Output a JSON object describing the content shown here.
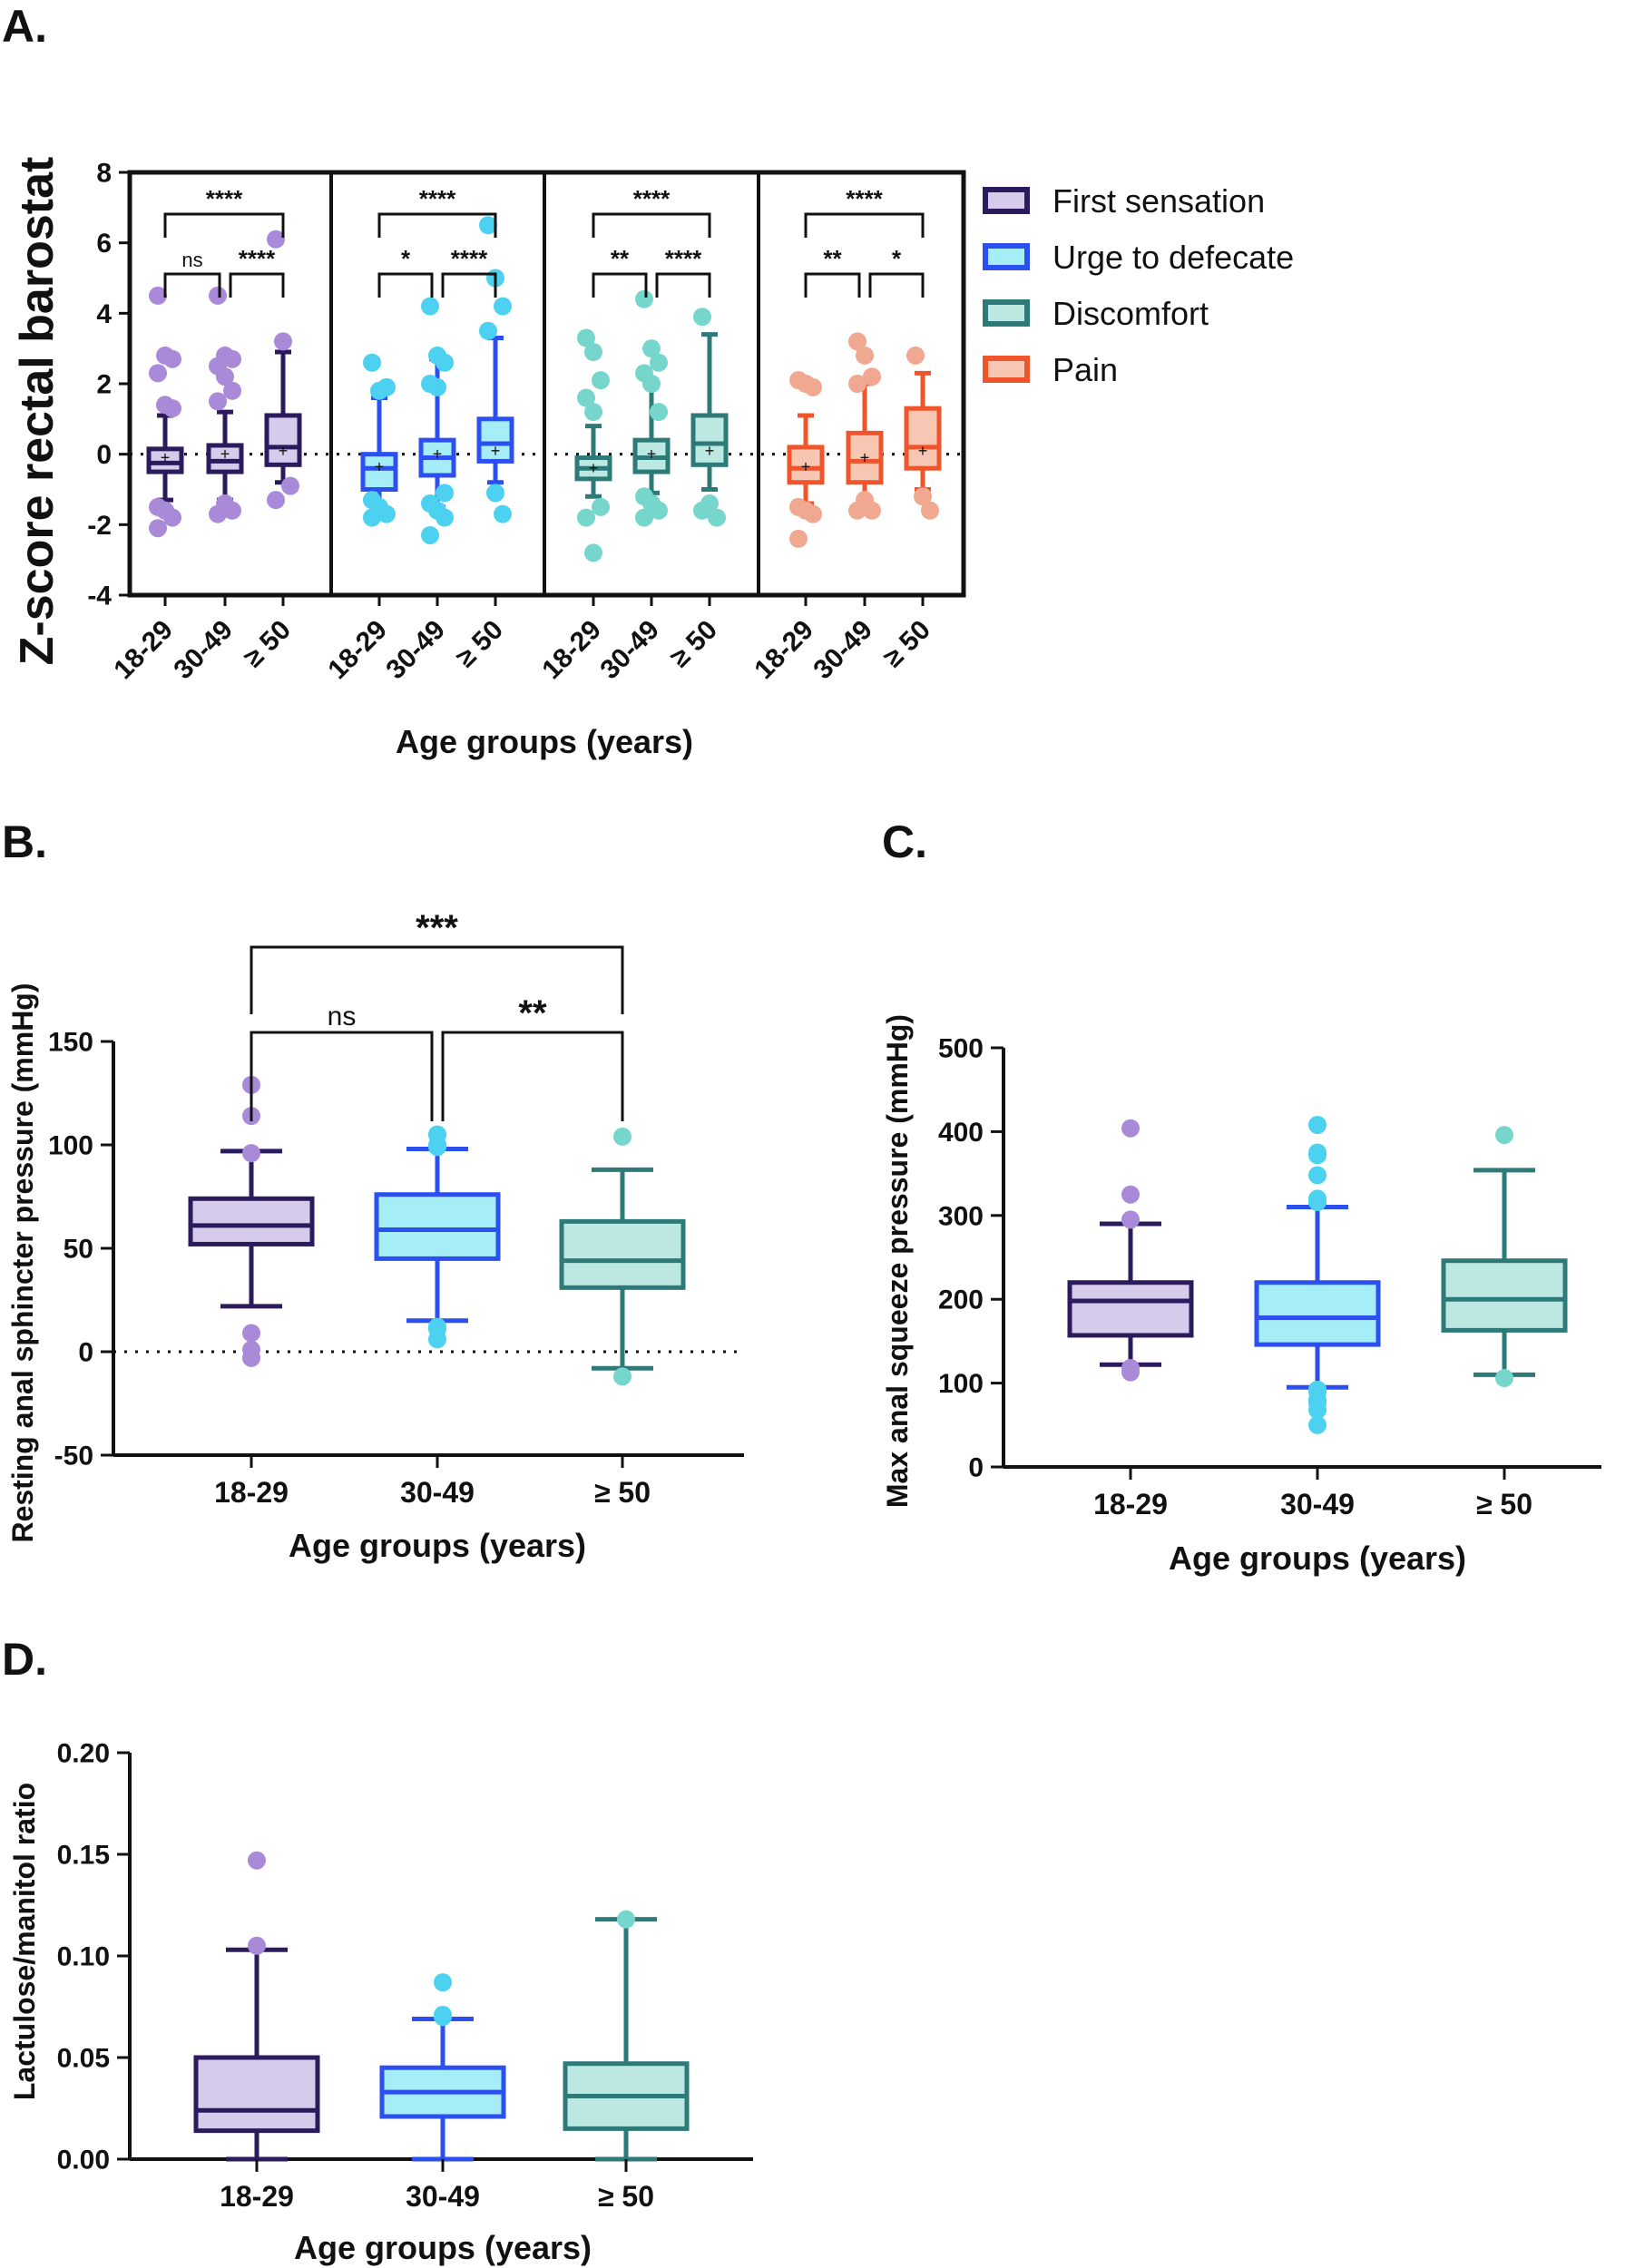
{
  "chart_data": [
    {
      "panel": "A.",
      "type": "box",
      "ylabel": "Z-score rectal barostat",
      "xlabel": "Age groups (years)",
      "ylim": [
        -4,
        8
      ],
      "yticks": [
        8,
        6,
        4,
        2,
        0,
        -2,
        -4
      ],
      "reference_line": 0,
      "categories": [
        "18-29",
        "30-49",
        "≥ 50"
      ],
      "legend": [
        {
          "name": "First sensation",
          "stroke": "#2b1a5c",
          "fill": "#d6cbeb"
        },
        {
          "name": "Urge to defecate",
          "stroke": "#2c4ff0",
          "fill": "#a5eef8"
        },
        {
          "name": "Discomfort",
          "stroke": "#2e7a78",
          "fill": "#bde8e2"
        },
        {
          "name": "Pain",
          "stroke": "#f0542a",
          "fill": "#f7c7b3"
        }
      ],
      "groups": [
        {
          "name": "First sensation",
          "stroke": "#2b1a5c",
          "fill": "#d6cbeb",
          "dot": "#a98ad9",
          "boxes": [
            {
              "q1": -0.5,
              "median": -0.25,
              "q3": 0.15,
              "whisker_low": -1.3,
              "whisker_high": 1.1,
              "mean": -0.1,
              "outliers": [
                4.5,
                2.8,
                2.7,
                2.3,
                1.4,
                1.3,
                -1.5,
                -1.6,
                -1.8,
                -2.1
              ]
            },
            {
              "q1": -0.5,
              "median": -0.2,
              "q3": 0.25,
              "whisker_low": -1.3,
              "whisker_high": 1.2,
              "mean": 0.0,
              "outliers": [
                4.5,
                2.8,
                2.7,
                2.5,
                2.2,
                1.8,
                1.5,
                -1.4,
                -1.6,
                -1.7
              ]
            },
            {
              "q1": -0.3,
              "median": 0.2,
              "q3": 1.1,
              "whisker_low": -0.8,
              "whisker_high": 2.9,
              "mean": 0.1,
              "outliers": [
                6.1,
                3.2,
                -0.9,
                -1.3
              ]
            }
          ],
          "significance": [
            {
              "from": 0,
              "to": 2,
              "label": "****",
              "level": 2
            },
            {
              "from": 0,
              "to": 1,
              "label": "ns",
              "level": 1
            },
            {
              "from": 1,
              "to": 2,
              "label": "****",
              "level": 1
            }
          ]
        },
        {
          "name": "Urge to defecate",
          "stroke": "#2c4ff0",
          "fill": "#a5eef8",
          "dot": "#4cd2f0",
          "boxes": [
            {
              "q1": -1.0,
              "median": -0.4,
              "q3": 0.0,
              "whisker_low": -1.7,
              "whisker_high": 1.6,
              "mean": -0.35,
              "outliers": [
                2.6,
                1.8,
                1.9,
                -1.3,
                -1.5,
                -1.7,
                -1.8
              ]
            },
            {
              "q1": -0.6,
              "median": -0.1,
              "q3": 0.4,
              "whisker_low": -1.5,
              "whisker_high": 2.7,
              "mean": 0.0,
              "outliers": [
                4.2,
                2.8,
                2.6,
                2.0,
                1.9,
                -1.1,
                -1.4,
                -1.6,
                -1.8,
                -2.3
              ]
            },
            {
              "q1": -0.2,
              "median": 0.3,
              "q3": 1.0,
              "whisker_low": -0.8,
              "whisker_high": 3.3,
              "mean": 0.1,
              "outliers": [
                6.5,
                5.0,
                4.2,
                3.5,
                -1.1,
                -1.7
              ]
            }
          ],
          "significance": [
            {
              "from": 0,
              "to": 2,
              "label": "****",
              "level": 2
            },
            {
              "from": 0,
              "to": 1,
              "label": "*",
              "level": 1
            },
            {
              "from": 1,
              "to": 2,
              "label": "****",
              "level": 1
            }
          ]
        },
        {
          "name": "Discomfort",
          "stroke": "#2e7a78",
          "fill": "#bde8e2",
          "dot": "#77d6cb",
          "boxes": [
            {
              "q1": -0.7,
              "median": -0.4,
              "q3": -0.1,
              "whisker_low": -1.2,
              "whisker_high": 0.8,
              "mean": -0.4,
              "outliers": [
                3.3,
                2.9,
                2.1,
                1.6,
                1.2,
                -1.5,
                -1.8,
                -2.8
              ]
            },
            {
              "q1": -0.5,
              "median": -0.1,
              "q3": 0.4,
              "whisker_low": -1.1,
              "whisker_high": 2.0,
              "mean": 0.0,
              "outliers": [
                4.4,
                3.0,
                2.6,
                2.3,
                2.0,
                1.2,
                -1.2,
                -1.4,
                -1.6,
                -1.8
              ]
            },
            {
              "q1": -0.3,
              "median": 0.3,
              "q3": 1.1,
              "whisker_low": -1.0,
              "whisker_high": 3.4,
              "mean": 0.1,
              "outliers": [
                3.9,
                -1.4,
                -1.8,
                -1.6
              ]
            }
          ],
          "significance": [
            {
              "from": 0,
              "to": 2,
              "label": "****",
              "level": 2
            },
            {
              "from": 0,
              "to": 1,
              "label": "**",
              "level": 1
            },
            {
              "from": 1,
              "to": 2,
              "label": "****",
              "level": 1
            }
          ]
        },
        {
          "name": "Pain",
          "stroke": "#f0542a",
          "fill": "#f7c7b3",
          "dot": "#f0a890",
          "boxes": [
            {
              "q1": -0.8,
              "median": -0.4,
              "q3": 0.2,
              "whisker_low": -1.4,
              "whisker_high": 1.1,
              "mean": -0.35,
              "outliers": [
                2.1,
                2.0,
                1.9,
                -1.5,
                -1.6,
                -1.7,
                -2.4
              ]
            },
            {
              "q1": -0.8,
              "median": -0.2,
              "q3": 0.6,
              "whisker_low": -1.3,
              "whisker_high": 2.0,
              "mean": -0.1,
              "outliers": [
                3.2,
                2.8,
                2.2,
                2.0,
                -1.3,
                -1.6,
                -1.6
              ]
            },
            {
              "q1": -0.4,
              "median": 0.2,
              "q3": 1.3,
              "whisker_low": -1.0,
              "whisker_high": 2.3,
              "mean": 0.1,
              "outliers": [
                2.8,
                -1.2,
                -1.6
              ]
            }
          ],
          "significance": [
            {
              "from": 0,
              "to": 2,
              "label": "****",
              "level": 2
            },
            {
              "from": 0,
              "to": 1,
              "label": "**",
              "level": 1
            },
            {
              "from": 1,
              "to": 2,
              "label": "*",
              "level": 1
            }
          ]
        }
      ]
    },
    {
      "panel": "B.",
      "type": "box",
      "ylabel": "Resting anal sphincter pressure (mmHg)",
      "xlabel": "Age groups (years)",
      "ylim": [
        -50,
        150
      ],
      "yticks": [
        150,
        100,
        50,
        0,
        -50
      ],
      "reference_line": 0,
      "categories": [
        "18-29",
        "30-49",
        "≥ 50"
      ],
      "boxes": [
        {
          "stroke": "#2b1a5c",
          "fill": "#d6cbeb",
          "dot": "#a98ad9",
          "q1": 52,
          "median": 61,
          "q3": 74,
          "whisker_low": 22,
          "whisker_high": 97,
          "outliers": [
            129,
            114,
            96,
            9,
            1,
            -3
          ]
        },
        {
          "stroke": "#2c4ff0",
          "fill": "#a5eef8",
          "dot": "#4cd2f0",
          "q1": 45,
          "median": 59,
          "q3": 76,
          "whisker_low": 15,
          "whisker_high": 98,
          "outliers": [
            105,
            105,
            100,
            99,
            11,
            6,
            12
          ]
        },
        {
          "stroke": "#2e7a78",
          "fill": "#bde8e2",
          "dot": "#77d6cb",
          "q1": 31,
          "median": 44,
          "q3": 63,
          "whisker_low": -8,
          "whisker_high": 88,
          "outliers": [
            104,
            -12
          ]
        }
      ],
      "significance": [
        {
          "from": 0,
          "to": 2,
          "label": "***",
          "level": 2
        },
        {
          "from": 0,
          "to": 1,
          "label": "ns",
          "level": 1
        },
        {
          "from": 1,
          "to": 2,
          "label": "**",
          "level": 1
        }
      ]
    },
    {
      "panel": "C.",
      "type": "box",
      "ylabel": "Max anal squeeze pressure (mmHg)",
      "xlabel": "Age groups (years)",
      "ylim": [
        0,
        500
      ],
      "yticks": [
        500,
        400,
        300,
        200,
        100,
        0
      ],
      "categories": [
        "18-29",
        "30-49",
        "≥ 50"
      ],
      "boxes": [
        {
          "stroke": "#2b1a5c",
          "fill": "#d6cbeb",
          "dot": "#a98ad9",
          "q1": 157,
          "median": 198,
          "q3": 220,
          "whisker_low": 122,
          "whisker_high": 290,
          "outliers": [
            404,
            325,
            295,
            113,
            118
          ]
        },
        {
          "stroke": "#2c4ff0",
          "fill": "#a5eef8",
          "dot": "#4cd2f0",
          "q1": 146,
          "median": 178,
          "q3": 220,
          "whisker_low": 95,
          "whisker_high": 310,
          "outliers": [
            408,
            375,
            372,
            348,
            320,
            316,
            318,
            92,
            90,
            80,
            76,
            68,
            50,
            92
          ]
        },
        {
          "stroke": "#2e7a78",
          "fill": "#bde8e2",
          "dot": "#77d6cb",
          "q1": 163,
          "median": 200,
          "q3": 246,
          "whisker_low": 110,
          "whisker_high": 354,
          "outliers": [
            396,
            106
          ]
        }
      ]
    },
    {
      "panel": "D.",
      "type": "box",
      "ylabel": "Lactulose/manitol ratio",
      "xlabel": "Age groups (years)",
      "ylim": [
        0,
        0.2
      ],
      "yticks": [
        "0.20",
        "0.15",
        "0.10",
        "0.05",
        "0.00"
      ],
      "categories": [
        "18-29",
        "30-49",
        "≥ 50"
      ],
      "boxes": [
        {
          "stroke": "#2b1a5c",
          "fill": "#d6cbeb",
          "dot": "#a98ad9",
          "q1": 0.014,
          "median": 0.024,
          "q3": 0.05,
          "whisker_low": 0.0,
          "whisker_high": 0.103,
          "outliers": [
            0.147,
            0.105
          ]
        },
        {
          "stroke": "#2c4ff0",
          "fill": "#a5eef8",
          "dot": "#4cd2f0",
          "q1": 0.021,
          "median": 0.033,
          "q3": 0.045,
          "whisker_low": 0.0,
          "whisker_high": 0.069,
          "outliers": [
            0.087,
            0.071,
            0.07
          ]
        },
        {
          "stroke": "#2e7a78",
          "fill": "#bde8e2",
          "dot": "#77d6cb",
          "q1": 0.015,
          "median": 0.031,
          "q3": 0.047,
          "whisker_low": 0.0,
          "whisker_high": 0.118,
          "outliers": [
            0.118
          ]
        }
      ]
    }
  ]
}
